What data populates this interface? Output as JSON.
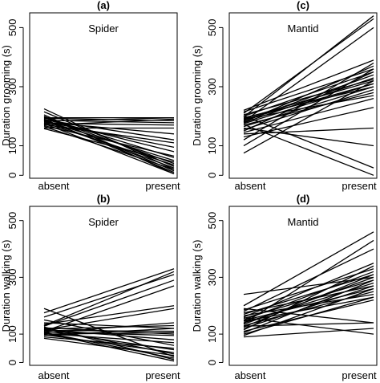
{
  "chart_data": [
    {
      "type": "line",
      "panel": "(a)",
      "inset_title": "Spider",
      "ylabel": "Duration grooming (s)",
      "categories": [
        "absent",
        "present"
      ],
      "yticks": [
        0,
        100,
        300,
        500
      ],
      "ylim": [
        -10,
        550
      ],
      "series": [
        {
          "values": [
            225,
            20
          ]
        },
        {
          "values": [
            215,
            30
          ]
        },
        {
          "values": [
            205,
            5
          ]
        },
        {
          "values": [
            200,
            15
          ]
        },
        {
          "values": [
            198,
            40
          ]
        },
        {
          "values": [
            195,
            60
          ]
        },
        {
          "values": [
            195,
            195
          ]
        },
        {
          "values": [
            193,
            185
          ]
        },
        {
          "values": [
            190,
            80
          ]
        },
        {
          "values": [
            190,
            10
          ]
        },
        {
          "values": [
            188,
            120
          ]
        },
        {
          "values": [
            186,
            178
          ]
        },
        {
          "values": [
            185,
            50
          ]
        },
        {
          "values": [
            185,
            25
          ]
        },
        {
          "values": [
            183,
            195
          ]
        },
        {
          "values": [
            182,
            95
          ]
        },
        {
          "values": [
            180,
            140
          ]
        },
        {
          "values": [
            178,
            35
          ]
        },
        {
          "values": [
            176,
            170
          ]
        },
        {
          "values": [
            175,
            5
          ]
        },
        {
          "values": [
            172,
            110
          ]
        },
        {
          "values": [
            170,
            190
          ]
        },
        {
          "values": [
            168,
            65
          ]
        },
        {
          "values": [
            165,
            20
          ]
        },
        {
          "values": [
            160,
            160
          ]
        },
        {
          "values": [
            158,
            45
          ]
        }
      ]
    },
    {
      "type": "line",
      "panel": "(c)",
      "inset_title": "Mantid",
      "ylabel": "Duration grooming (s)",
      "categories": [
        "absent",
        "present"
      ],
      "yticks": [
        0,
        100,
        300,
        500
      ],
      "ylim": [
        -10,
        550
      ],
      "series": [
        {
          "values": [
            75,
            320
          ]
        },
        {
          "values": [
            100,
            360
          ]
        },
        {
          "values": [
            120,
            380
          ]
        },
        {
          "values": [
            130,
            230
          ]
        },
        {
          "values": [
            140,
            160
          ]
        },
        {
          "values": [
            145,
            260
          ]
        },
        {
          "values": [
            150,
            350
          ]
        },
        {
          "values": [
            155,
            290
          ]
        },
        {
          "values": [
            160,
            100
          ]
        },
        {
          "values": [
            165,
            300
          ]
        },
        {
          "values": [
            170,
            280
          ]
        },
        {
          "values": [
            172,
            0
          ]
        },
        {
          "values": [
            175,
            310
          ]
        },
        {
          "values": [
            178,
            330
          ]
        },
        {
          "values": [
            180,
            370
          ]
        },
        {
          "values": [
            182,
            500
          ]
        },
        {
          "values": [
            185,
            340
          ]
        },
        {
          "values": [
            188,
            310
          ]
        },
        {
          "values": [
            190,
            270
          ]
        },
        {
          "values": [
            192,
            320
          ]
        },
        {
          "values": [
            195,
            300
          ]
        },
        {
          "values": [
            198,
            540
          ]
        },
        {
          "values": [
            200,
            350
          ]
        },
        {
          "values": [
            202,
            25
          ]
        },
        {
          "values": [
            205,
            325
          ]
        },
        {
          "values": [
            210,
            530
          ]
        },
        {
          "values": [
            215,
            360
          ]
        },
        {
          "values": [
            220,
            390
          ]
        }
      ]
    },
    {
      "type": "line",
      "panel": "(b)",
      "inset_title": "Spider",
      "ylabel": "Duration walking (s)",
      "categories": [
        "absent",
        "present"
      ],
      "yticks": [
        0,
        100,
        300,
        500
      ],
      "ylim": [
        -10,
        550
      ],
      "series": [
        {
          "values": [
            190,
            20
          ]
        },
        {
          "values": [
            175,
            330
          ]
        },
        {
          "values": [
            160,
            310
          ]
        },
        {
          "values": [
            150,
            60
          ]
        },
        {
          "values": [
            140,
            120
          ]
        },
        {
          "values": [
            135,
            200
          ]
        },
        {
          "values": [
            130,
            320
          ]
        },
        {
          "values": [
            128,
            290
          ]
        },
        {
          "values": [
            125,
            10
          ]
        },
        {
          "values": [
            122,
            100
          ]
        },
        {
          "values": [
            120,
            30
          ]
        },
        {
          "values": [
            118,
            130
          ]
        },
        {
          "values": [
            116,
            80
          ]
        },
        {
          "values": [
            115,
            190
          ]
        },
        {
          "values": [
            113,
            110
          ]
        },
        {
          "values": [
            112,
            45
          ]
        },
        {
          "values": [
            110,
            270
          ]
        },
        {
          "values": [
            108,
            95
          ]
        },
        {
          "values": [
            106,
            15
          ]
        },
        {
          "values": [
            105,
            140
          ]
        },
        {
          "values": [
            104,
            5
          ]
        },
        {
          "values": [
            102,
            70
          ]
        },
        {
          "values": [
            100,
            105
          ]
        },
        {
          "values": [
            98,
            35
          ]
        },
        {
          "values": [
            95,
            120
          ]
        },
        {
          "values": [
            90,
            50
          ]
        },
        {
          "values": [
            85,
            25
          ]
        }
      ]
    },
    {
      "type": "line",
      "panel": "(d)",
      "inset_title": "Mantid",
      "ylabel": "Duration walking (s)",
      "categories": [
        "absent",
        "present"
      ],
      "yticks": [
        0,
        100,
        300,
        500
      ],
      "ylim": [
        -10,
        550
      ],
      "series": [
        {
          "values": [
            240,
            300
          ]
        },
        {
          "values": [
            200,
            460
          ]
        },
        {
          "values": [
            190,
            140
          ]
        },
        {
          "values": [
            185,
            330
          ]
        },
        {
          "values": [
            180,
            400
          ]
        },
        {
          "values": [
            175,
            270
          ]
        },
        {
          "values": [
            170,
            310
          ]
        },
        {
          "values": [
            165,
            240
          ]
        },
        {
          "values": [
            160,
            350
          ]
        },
        {
          "values": [
            158,
            100
          ]
        },
        {
          "values": [
            155,
            290
          ]
        },
        {
          "values": [
            150,
            320
          ]
        },
        {
          "values": [
            148,
            260
          ]
        },
        {
          "values": [
            145,
            230
          ]
        },
        {
          "values": [
            140,
            280
          ]
        },
        {
          "values": [
            138,
            430
          ]
        },
        {
          "values": [
            135,
            300
          ]
        },
        {
          "values": [
            130,
            250
          ]
        },
        {
          "values": [
            128,
            140
          ]
        },
        {
          "values": [
            125,
            310
          ]
        },
        {
          "values": [
            120,
            270
          ]
        },
        {
          "values": [
            115,
            340
          ]
        },
        {
          "values": [
            110,
            220
          ]
        },
        {
          "values": [
            105,
            290
          ]
        },
        {
          "values": [
            100,
            230
          ]
        },
        {
          "values": [
            95,
            260
          ]
        },
        {
          "values": [
            90,
            120
          ]
        }
      ]
    }
  ]
}
